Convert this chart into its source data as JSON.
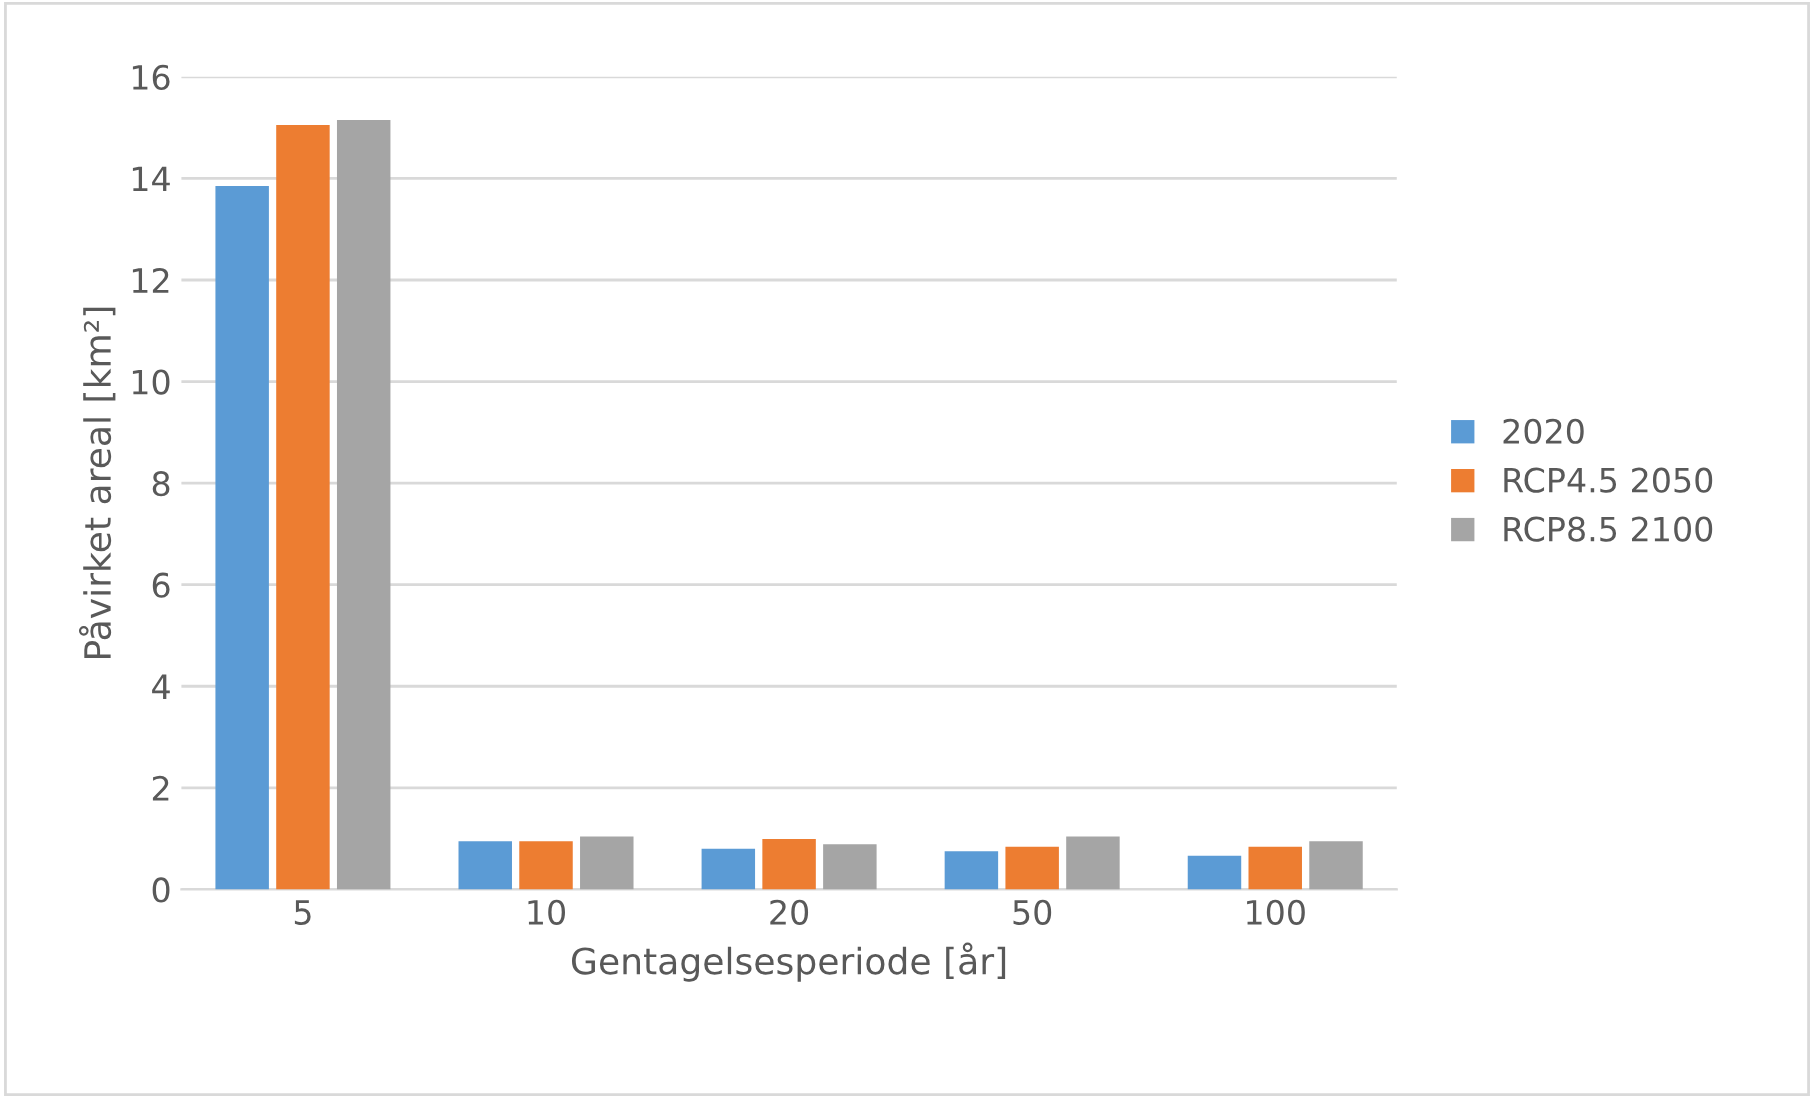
{
  "chart_data": {
    "type": "bar",
    "xlabel": "Gentagelsesperiode [år]",
    "ylabel": "Påvirket areal [km²]",
    "categories": [
      "5",
      "10",
      "20",
      "50",
      "100"
    ],
    "series": [
      {
        "name": "2020",
        "color": "#5b9bd5",
        "values": [
          13.85,
          0.95,
          0.8,
          0.75,
          0.66
        ]
      },
      {
        "name": "RCP4.5 2050",
        "color": "#ed7d31",
        "values": [
          15.05,
          0.95,
          0.99,
          0.84,
          0.84
        ]
      },
      {
        "name": "RCP8.5 2100",
        "color": "#a5a5a5",
        "values": [
          15.15,
          1.04,
          0.89,
          1.04,
          0.95
        ]
      }
    ],
    "ylim": [
      0,
      16
    ],
    "yticks": [
      0,
      2,
      4,
      6,
      8,
      10,
      12,
      14,
      16
    ],
    "grid": "y",
    "legend": "right"
  }
}
